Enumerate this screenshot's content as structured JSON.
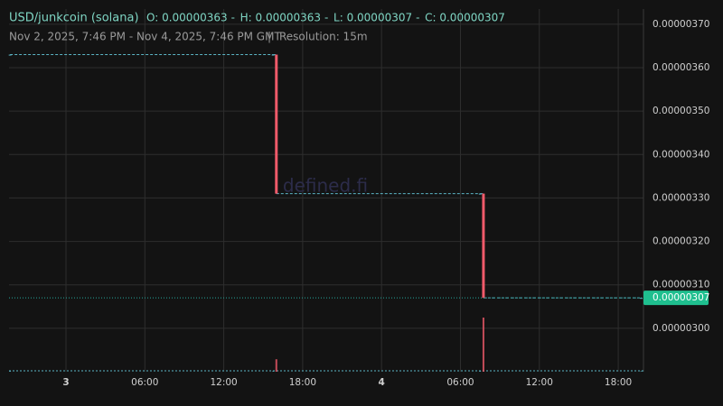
{
  "header": {
    "symbol": "USD/junkcoin (solana)",
    "ohlc": [
      "O: 0.00000363",
      "H: 0.00000363",
      "L: 0.00000307",
      "C: 0.00000307"
    ],
    "range": "Nov 2, 2025, 7:46 PM - Nov 4, 2025, 7:46 PM GMT",
    "resolution": "Resolution: 15m",
    "watermark": "defined.fi"
  },
  "chart_data": {
    "type": "candlestick",
    "x": [
      -4.25,
      15.75,
      16,
      31.5,
      31.75,
      43.75
    ],
    "open": [
      3.63e-06,
      3.63e-06,
      3.63e-06,
      3.31e-06,
      3.31e-06,
      3.07e-06
    ],
    "high": [
      3.63e-06,
      3.63e-06,
      3.63e-06,
      3.31e-06,
      3.31e-06,
      3.07e-06
    ],
    "low": [
      3.63e-06,
      3.63e-06,
      3.31e-06,
      3.31e-06,
      3.07e-06,
      3.07e-06
    ],
    "close": [
      3.63e-06,
      3.63e-06,
      3.31e-06,
      3.31e-06,
      3.07e-06,
      3.07e-06
    ],
    "volume": [
      1,
      1,
      23,
      1,
      100,
      1
    ],
    "up_color": "#26a69a",
    "down_color": "#f05a6a",
    "flat_color": "#5bb5c5",
    "last_price": {
      "value": 3.07e-06,
      "label": "0.00000307"
    },
    "xlim": [
      -4.33,
      43.92
    ],
    "xticks": [
      {
        "value": 0,
        "label": "3"
      },
      {
        "value": 6,
        "label": "06:00"
      },
      {
        "value": 12,
        "label": "12:00"
      },
      {
        "value": 18,
        "label": "18:00"
      },
      {
        "value": 24,
        "label": "4"
      },
      {
        "value": 30,
        "label": "06:00"
      },
      {
        "value": 36,
        "label": "12:00"
      },
      {
        "value": 42,
        "label": "18:00"
      }
    ],
    "ylim": [
      2.9e-06,
      3.735e-06
    ],
    "yticks": [
      {
        "value": 3e-06,
        "label": "0.00000300"
      },
      {
        "value": 3.1e-06,
        "label": "0.00000310"
      },
      {
        "value": 3.2e-06,
        "label": "0.00000320"
      },
      {
        "value": 3.3e-06,
        "label": "0.00000330"
      },
      {
        "value": 3.4e-06,
        "label": "0.00000340"
      },
      {
        "value": 3.5e-06,
        "label": "0.00000350"
      },
      {
        "value": 3.6e-06,
        "label": "0.00000360"
      },
      {
        "value": 3.7e-06,
        "label": "0.00000370"
      }
    ],
    "grid": true
  }
}
